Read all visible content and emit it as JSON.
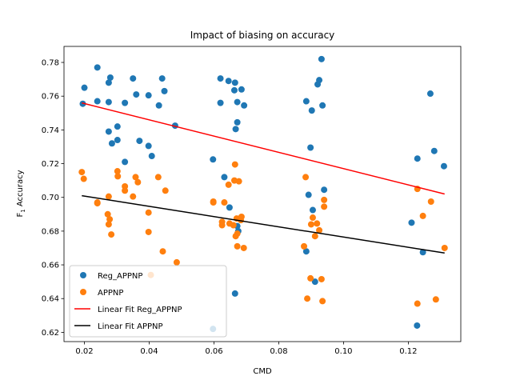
{
  "chart_data": {
    "type": "scatter",
    "title": "Impact of biasing on accuracy",
    "xlabel": "CMD",
    "ylabel_main": "F",
    "ylabel_sub": "1",
    "ylabel_rest": " Accuracy",
    "xlim": [
      0.0137,
      0.1362
    ],
    "ylim": [
      0.6145,
      0.7895
    ],
    "xticks": [
      0.02,
      0.04,
      0.06,
      0.08,
      0.1,
      0.12
    ],
    "xtick_labels": [
      "0.02",
      "0.04",
      "0.06",
      "0.08",
      "0.10",
      "0.12"
    ],
    "yticks": [
      0.62,
      0.64,
      0.66,
      0.68,
      0.7,
      0.72,
      0.74,
      0.76,
      0.78
    ],
    "ytick_labels": [
      "0.62",
      "0.64",
      "0.66",
      "0.68",
      "0.70",
      "0.72",
      "0.74",
      "0.76",
      "0.78"
    ],
    "grid": false,
    "legend_position": "lower-left",
    "series": [
      {
        "name": "Reg_APPNP",
        "kind": "scatter",
        "color": "#1f77b4",
        "points": [
          [
            0.0195,
            0.7555
          ],
          [
            0.02,
            0.765
          ],
          [
            0.024,
            0.777
          ],
          [
            0.024,
            0.757
          ],
          [
            0.0275,
            0.7565
          ],
          [
            0.0275,
            0.768
          ],
          [
            0.028,
            0.771
          ],
          [
            0.0275,
            0.739
          ],
          [
            0.0285,
            0.732
          ],
          [
            0.0302,
            0.734
          ],
          [
            0.0302,
            0.742
          ],
          [
            0.0325,
            0.756
          ],
          [
            0.0325,
            0.721
          ],
          [
            0.035,
            0.7705
          ],
          [
            0.036,
            0.761
          ],
          [
            0.037,
            0.7335
          ],
          [
            0.0398,
            0.7605
          ],
          [
            0.0398,
            0.7305
          ],
          [
            0.0408,
            0.7245
          ],
          [
            0.043,
            0.7545
          ],
          [
            0.044,
            0.7705
          ],
          [
            0.0447,
            0.763
          ],
          [
            0.048,
            0.7425
          ],
          [
            0.0597,
            0.7225
          ],
          [
            0.0597,
            0.622
          ],
          [
            0.062,
            0.7705
          ],
          [
            0.062,
            0.756
          ],
          [
            0.0632,
            0.712
          ],
          [
            0.0645,
            0.769
          ],
          [
            0.0648,
            0.694
          ],
          [
            0.0663,
            0.7635
          ],
          [
            0.0665,
            0.768
          ],
          [
            0.0667,
            0.7405
          ],
          [
            0.0672,
            0.7445
          ],
          [
            0.0672,
            0.7565
          ],
          [
            0.0672,
            0.683
          ],
          [
            0.0675,
            0.68
          ],
          [
            0.0665,
            0.643
          ],
          [
            0.0685,
            0.764
          ],
          [
            0.0693,
            0.7545
          ],
          [
            0.0885,
            0.757
          ],
          [
            0.0885,
            0.668
          ],
          [
            0.0892,
            0.7015
          ],
          [
            0.0898,
            0.7295
          ],
          [
            0.0902,
            0.7515
          ],
          [
            0.0905,
            0.6925
          ],
          [
            0.0912,
            0.65
          ],
          [
            0.092,
            0.767
          ],
          [
            0.0925,
            0.7695
          ],
          [
            0.0932,
            0.782
          ],
          [
            0.0935,
            0.7545
          ],
          [
            0.094,
            0.7045
          ],
          [
            0.121,
            0.685
          ],
          [
            0.1227,
            0.624
          ],
          [
            0.1228,
            0.723
          ],
          [
            0.1245,
            0.6675
          ],
          [
            0.1268,
            0.7615
          ],
          [
            0.128,
            0.7275
          ],
          [
            0.131,
            0.7185
          ]
        ]
      },
      {
        "name": "APPNP",
        "kind": "scatter",
        "color": "#ff7f0e",
        "points": [
          [
            0.0192,
            0.715
          ],
          [
            0.0198,
            0.711
          ],
          [
            0.024,
            0.697
          ],
          [
            0.024,
            0.6965
          ],
          [
            0.0272,
            0.69
          ],
          [
            0.0275,
            0.684
          ],
          [
            0.0275,
            0.7005
          ],
          [
            0.0278,
            0.687
          ],
          [
            0.0283,
            0.678
          ],
          [
            0.0302,
            0.7155
          ],
          [
            0.0303,
            0.7125
          ],
          [
            0.0325,
            0.7065
          ],
          [
            0.0325,
            0.704
          ],
          [
            0.035,
            0.7005
          ],
          [
            0.0358,
            0.712
          ],
          [
            0.0365,
            0.709
          ],
          [
            0.0398,
            0.691
          ],
          [
            0.0398,
            0.6795
          ],
          [
            0.0405,
            0.654
          ],
          [
            0.0428,
            0.712
          ],
          [
            0.0442,
            0.668
          ],
          [
            0.045,
            0.704
          ],
          [
            0.0485,
            0.6615
          ],
          [
            0.0598,
            0.697
          ],
          [
            0.0598,
            0.6975
          ],
          [
            0.0625,
            0.6855
          ],
          [
            0.0625,
            0.6835
          ],
          [
            0.0632,
            0.697
          ],
          [
            0.0645,
            0.7075
          ],
          [
            0.0648,
            0.6845
          ],
          [
            0.066,
            0.6835
          ],
          [
            0.0663,
            0.71
          ],
          [
            0.0665,
            0.7195
          ],
          [
            0.0667,
            0.677
          ],
          [
            0.0672,
            0.6785
          ],
          [
            0.067,
            0.6875
          ],
          [
            0.0672,
            0.671
          ],
          [
            0.0677,
            0.7095
          ],
          [
            0.0683,
            0.6865
          ],
          [
            0.0685,
            0.6885
          ],
          [
            0.0692,
            0.67
          ],
          [
            0.0878,
            0.671
          ],
          [
            0.0883,
            0.712
          ],
          [
            0.0888,
            0.64
          ],
          [
            0.0898,
            0.652
          ],
          [
            0.09,
            0.684
          ],
          [
            0.0905,
            0.688
          ],
          [
            0.0912,
            0.677
          ],
          [
            0.0918,
            0.6845
          ],
          [
            0.0925,
            0.6805
          ],
          [
            0.0932,
            0.6515
          ],
          [
            0.0935,
            0.6385
          ],
          [
            0.094,
            0.6985
          ],
          [
            0.094,
            0.6945
          ],
          [
            0.1228,
            0.705
          ],
          [
            0.1228,
            0.637
          ],
          [
            0.1245,
            0.689
          ],
          [
            0.127,
            0.6975
          ],
          [
            0.1285,
            0.6395
          ],
          [
            0.1312,
            0.67
          ]
        ]
      },
      {
        "name": "Linear Fit Reg_APPNP",
        "kind": "line",
        "color": "#ff0000",
        "points": [
          [
            0.0192,
            0.756
          ],
          [
            0.1312,
            0.702
          ]
        ]
      },
      {
        "name": "Linear Fit APPNP",
        "kind": "line",
        "color": "#000000",
        "points": [
          [
            0.0192,
            0.701
          ],
          [
            0.1312,
            0.667
          ]
        ]
      }
    ]
  }
}
